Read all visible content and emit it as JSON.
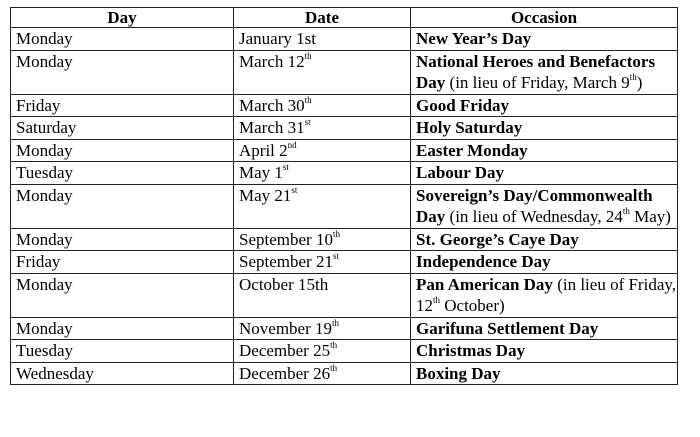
{
  "headers": [
    "Day",
    "Date",
    "Occasion"
  ],
  "rows": [
    {
      "day": "Monday",
      "date": {
        "text": "January 1st",
        "sup": ""
      },
      "occasion": {
        "bold": "New Year’s Day",
        "rest": "",
        "sup": "",
        "post": ""
      }
    },
    {
      "day": "Monday",
      "date": {
        "text": "March 12",
        "sup": "th"
      },
      "occasion": {
        "bold": "National Heroes and Benefactors Day",
        "rest": " (in lieu of Friday, March 9",
        "sup": "th",
        "post": ")"
      }
    },
    {
      "day": "Friday",
      "date": {
        "text": "March 30",
        "sup": "th"
      },
      "occasion": {
        "bold": "Good Friday",
        "rest": "",
        "sup": "",
        "post": ""
      }
    },
    {
      "day": "Saturday",
      "date": {
        "text": "March 31",
        "sup": "st"
      },
      "occasion": {
        "bold": "Holy Saturday",
        "rest": "",
        "sup": "",
        "post": ""
      }
    },
    {
      "day": "Monday",
      "date": {
        "text": "April 2",
        "sup": "nd"
      },
      "occasion": {
        "bold": "Easter Monday",
        "rest": "",
        "sup": "",
        "post": ""
      }
    },
    {
      "day": "Tuesday",
      "date": {
        "text": "May 1",
        "sup": "st"
      },
      "occasion": {
        "bold": "Labour Day",
        "rest": "",
        "sup": "",
        "post": ""
      }
    },
    {
      "day": "Monday",
      "date": {
        "text": "May 21",
        "sup": "st"
      },
      "occasion": {
        "bold": "Sovereign’s Day/Commonwealth Day",
        "rest": " (in lieu of Wednesday, 24",
        "sup": "th",
        "post": " May)"
      }
    },
    {
      "day": "Monday",
      "date": {
        "text": "September 10",
        "sup": "th"
      },
      "occasion": {
        "bold": "St. George’s Caye Day",
        "rest": "",
        "sup": "",
        "post": ""
      }
    },
    {
      "day": "Friday",
      "date": {
        "text": "September 21",
        "sup": "st"
      },
      "occasion": {
        "bold": "Independence Day",
        "rest": "",
        "sup": "",
        "post": ""
      }
    },
    {
      "day": "Monday",
      "date": {
        "text": "October 15th",
        "sup": ""
      },
      "occasion": {
        "bold": "Pan American Day",
        "rest": " (in lieu of Friday, 12",
        "sup": "th",
        "post": " October)"
      }
    },
    {
      "day": "Monday",
      "date": {
        "text": "November 19",
        "sup": "th"
      },
      "occasion": {
        "bold": "Garifuna Settlement Day",
        "rest": "",
        "sup": "",
        "post": ""
      }
    },
    {
      "day": "Tuesday",
      "date": {
        "text": "December 25",
        "sup": "th"
      },
      "occasion": {
        "bold": "Christmas Day",
        "rest": "",
        "sup": "",
        "post": ""
      }
    },
    {
      "day": "Wednesday",
      "date": {
        "text": "December 26",
        "sup": "th"
      },
      "occasion": {
        "bold": "Boxing Day",
        "rest": "",
        "sup": "",
        "post": ""
      }
    }
  ]
}
